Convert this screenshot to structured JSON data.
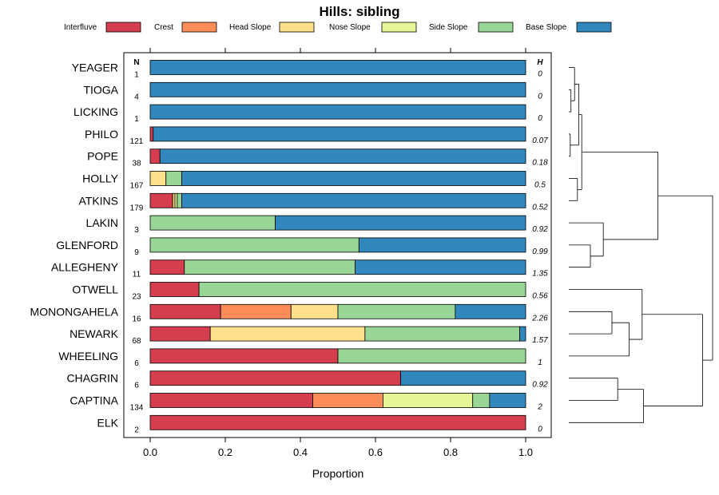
{
  "chart_data": {
    "type": "bar",
    "stacked": true,
    "orientation": "horizontal",
    "title": "Hills: sibling",
    "xlabel": "Proportion",
    "ylabel": "",
    "xlim": [
      0,
      1
    ],
    "xticks": [
      "0.0",
      "0.2",
      "0.4",
      "0.6",
      "0.8",
      "1.0"
    ],
    "n_header": "N",
    "h_header": "H",
    "categories": [
      "YEAGER",
      "TIOGA",
      "LICKING",
      "PHILO",
      "POPE",
      "HOLLY",
      "ATKINS",
      "LAKIN",
      "GLENFORD",
      "ALLEGHENY",
      "OTWELL",
      "MONONGAHELA",
      "NEWARK",
      "WHEELING",
      "CHAGRIN",
      "CAPTINA",
      "ELK"
    ],
    "n": [
      "1",
      "4",
      "1",
      "121",
      "38",
      "167",
      "179",
      "3",
      "9",
      "11",
      "23",
      "16",
      "68",
      "6",
      "6",
      "134",
      "2"
    ],
    "h": [
      "0",
      "0",
      "0",
      "0.07",
      "0.18",
      "0.5",
      "0.52",
      "0.92",
      "0.99",
      "1.35",
      "0.56",
      "2.26",
      "1.57",
      "1",
      "0.92",
      "2",
      "0"
    ],
    "series": [
      {
        "name": "Interfluve",
        "color": "#d53e4f",
        "values": [
          0,
          0,
          0,
          0.008,
          0.026,
          0,
          0.06,
          0,
          0,
          0.091,
          0.13,
          0.1875,
          0.16,
          0.5,
          0.667,
          0.433,
          1.0
        ]
      },
      {
        "name": "Crest",
        "color": "#fc8d59",
        "values": [
          0,
          0,
          0,
          0,
          0,
          0,
          0,
          0,
          0,
          0,
          0,
          0.1875,
          0,
          0,
          0,
          0.187,
          0
        ]
      },
      {
        "name": "Head Slope",
        "color": "#fee08b",
        "values": [
          0,
          0,
          0,
          0,
          0,
          0.042,
          0.006,
          0,
          0,
          0,
          0,
          0.125,
          0.412,
          0,
          0,
          0,
          0
        ]
      },
      {
        "name": "Nose Slope",
        "color": "#e6f598",
        "values": [
          0,
          0,
          0,
          0,
          0,
          0,
          0.006,
          0,
          0,
          0,
          0,
          0,
          0,
          0,
          0,
          0.239,
          0
        ]
      },
      {
        "name": "Side Slope",
        "color": "#99d594",
        "values": [
          0,
          0,
          0,
          0,
          0,
          0.042,
          0.012,
          0.333,
          0.556,
          0.455,
          0.87,
          0.3125,
          0.412,
          0.5,
          0,
          0.045,
          0
        ]
      },
      {
        "name": "Base Slope",
        "color": "#3288bd",
        "values": [
          1.0,
          1.0,
          1.0,
          0.992,
          0.974,
          0.916,
          0.916,
          0.667,
          0.444,
          0.454,
          0,
          0.1875,
          0.016,
          0,
          0.333,
          0.096,
          0
        ]
      }
    ],
    "legend_position": "top",
    "dendrogram": {
      "leaf_order": [
        "YEAGER",
        "TIOGA",
        "LICKING",
        "PHILO",
        "POPE",
        "HOLLY",
        "ATKINS",
        "LAKIN",
        "GLENFORD",
        "ALLEGHENY",
        "OTWELL",
        "MONONGAHELA",
        "NEWARK",
        "WHEELING",
        "CHAGRIN",
        "CAPTINA",
        "ELK"
      ],
      "merges": [
        {
          "a": "L:TIOGA",
          "b": "L:LICKING",
          "h": 0.015
        },
        {
          "a": "L:PHILO",
          "b": "L:POPE",
          "h": 0.01
        },
        {
          "a": "L:YEAGER",
          "b": "M:0",
          "h": 0.04
        },
        {
          "a": "M:2",
          "b": "M:1",
          "h": 0.07
        },
        {
          "a": "L:HOLLY",
          "b": "L:ATKINS",
          "h": 0.06
        },
        {
          "a": "M:3",
          "b": "M:4",
          "h": 0.09
        },
        {
          "a": "L:GLENFORD",
          "b": "L:ALLEGHENY",
          "h": 0.15
        },
        {
          "a": "L:LAKIN",
          "b": "M:6",
          "h": 0.24
        },
        {
          "a": "M:5",
          "b": "M:7",
          "h": 0.62
        },
        {
          "a": "L:MONONGAHELA",
          "b": "L:NEWARK",
          "h": 0.3
        },
        {
          "a": "M:9",
          "b": "L:WHEELING",
          "h": 0.42
        },
        {
          "a": "L:OTWELL",
          "b": "M:10",
          "h": 0.51
        },
        {
          "a": "L:CHAGRIN",
          "b": "L:CAPTINA",
          "h": 0.34
        },
        {
          "a": "M:12",
          "b": "L:ELK",
          "h": 0.52
        },
        {
          "a": "M:11",
          "b": "M:13",
          "h": 0.93
        },
        {
          "a": "M:8",
          "b": "M:14",
          "h": 1.0
        }
      ]
    }
  }
}
